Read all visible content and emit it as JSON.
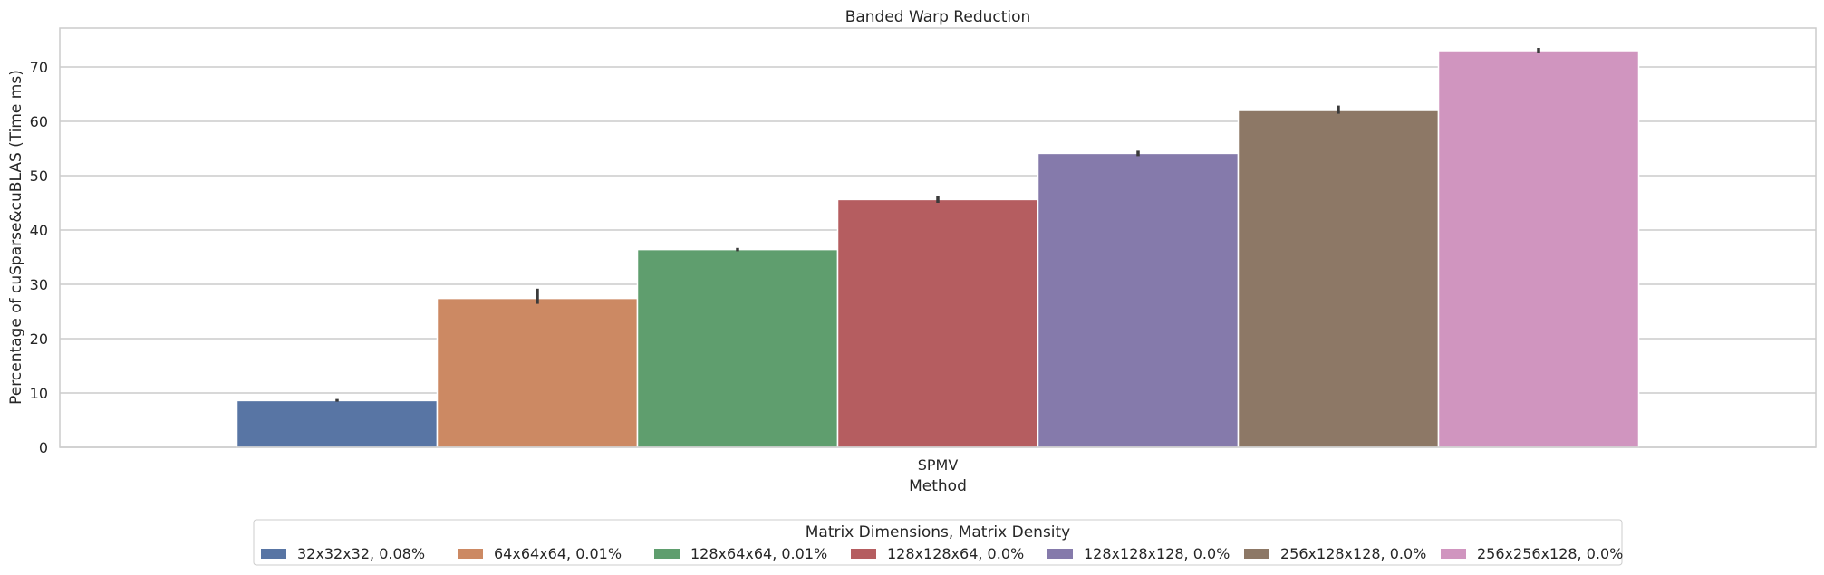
{
  "chart_data": {
    "type": "bar",
    "title": "Banded Warp Reduction",
    "xlabel": "Method",
    "ylabel": "Percentage of cuSparse&cuBLAS (Time ms)",
    "categories": [
      "SPMV"
    ],
    "ylim": [
      0,
      77
    ],
    "yticks": [
      0,
      10,
      20,
      30,
      40,
      50,
      60,
      70
    ],
    "grid": true,
    "legend_title": "Matrix Dimensions, Matrix Density",
    "legend_position": "bottom-center",
    "series": [
      {
        "name": "32x32x32, 0.08%",
        "color": "#5875a4",
        "values": [
          8.6
        ],
        "error": [
          [
            8.4,
            8.9
          ]
        ]
      },
      {
        "name": "64x64x64, 0.01%",
        "color": "#cc8963",
        "values": [
          27.4
        ],
        "error": [
          [
            26.4,
            29.2
          ]
        ]
      },
      {
        "name": "128x64x64, 0.01%",
        "color": "#5f9e6e",
        "values": [
          36.4
        ],
        "error": [
          [
            36.1,
            36.7
          ]
        ]
      },
      {
        "name": "128x128x64, 0.0%",
        "color": "#b55d60",
        "values": [
          45.6
        ],
        "error": [
          [
            45.0,
            46.3
          ]
        ]
      },
      {
        "name": "128x128x128, 0.0%",
        "color": "#857aab",
        "values": [
          54.1
        ],
        "error": [
          [
            53.6,
            54.6
          ]
        ]
      },
      {
        "name": "256x128x128, 0.0%",
        "color": "#8d7866",
        "values": [
          62.0
        ],
        "error": [
          [
            61.4,
            62.9
          ]
        ]
      },
      {
        "name": "256x256x128, 0.0%",
        "color": "#d095bf",
        "values": [
          73.0
        ],
        "error": [
          [
            72.5,
            73.5
          ]
        ]
      }
    ]
  }
}
